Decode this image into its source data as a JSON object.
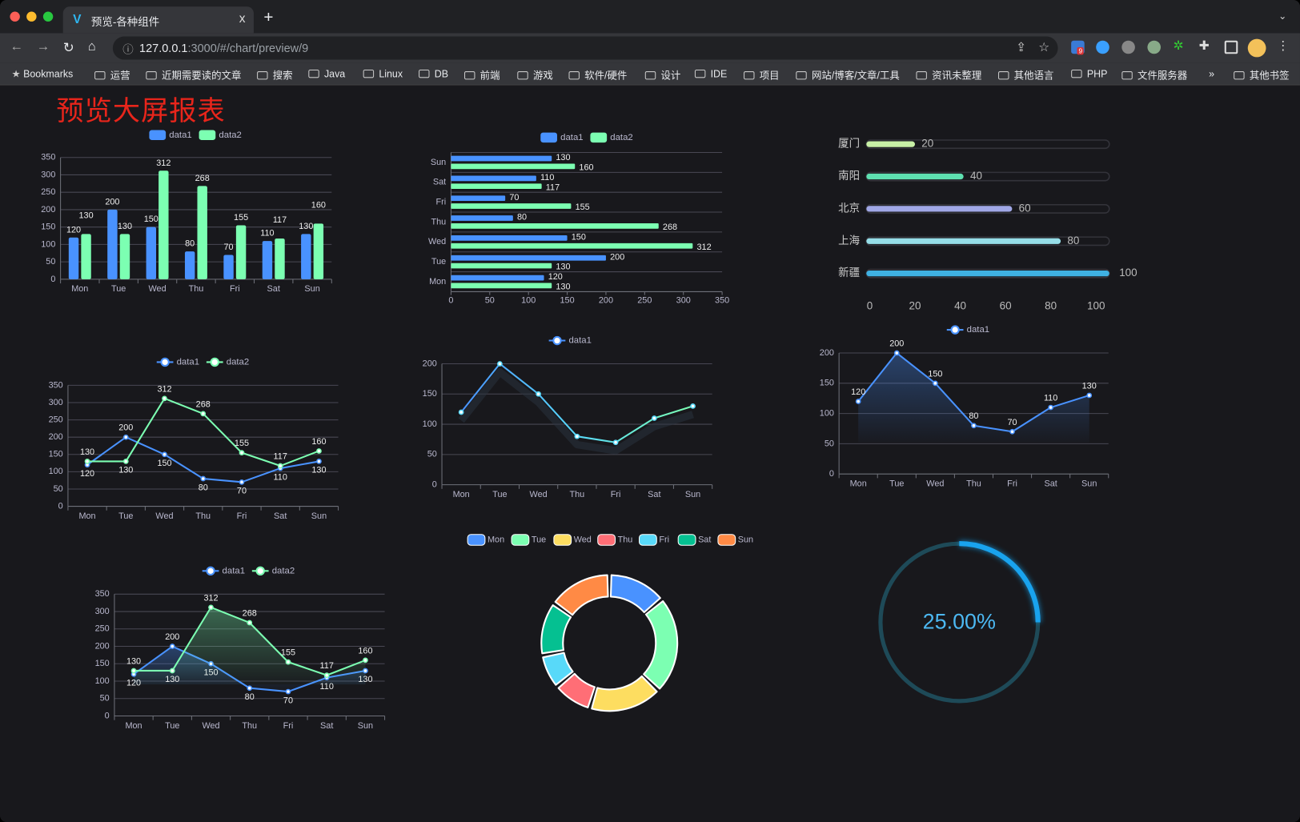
{
  "browser": {
    "tab_title": "预览-各种组件",
    "tab_close": "x",
    "new_tab": "+",
    "url_host": "127.0.0.1",
    "url_rest": ":3000/#/chart/preview/9",
    "extension_badge": "9",
    "bookmarks": [
      "Bookmarks",
      "运营",
      "近期需要读的文章",
      "搜索",
      "Java",
      "Linux",
      "DB",
      "前端",
      "游戏",
      "软件/硬件",
      "设计",
      "IDE",
      "项目",
      "网站/博客/文章/工具",
      "资讯未整理",
      "其他语言",
      "PHP",
      "文件服务器"
    ],
    "bookmarks_overflow": "»",
    "other_bookmarks": "其他书签"
  },
  "page": {
    "title": "预览大屏报表"
  },
  "colors": {
    "blue": "#4992ff",
    "green": "#7cffb2",
    "yellow": "#fddd60",
    "red": "#ff6e76",
    "cyan": "#58d9f9",
    "teal": "#05c091",
    "orange": "#ff8a45",
    "title": "#e8251b",
    "gauge": "#19a3ee"
  },
  "chart_data": [
    {
      "type": "bar",
      "categories": [
        "Mon",
        "Tue",
        "Wed",
        "Thu",
        "Fri",
        "Sat",
        "Sun"
      ],
      "ylim": [
        0,
        350
      ],
      "yticks": [
        0,
        50,
        100,
        150,
        200,
        250,
        300,
        350
      ],
      "legend": "top",
      "grid": true,
      "series": [
        {
          "name": "data1",
          "values": [
            120,
            200,
            150,
            80,
            70,
            110,
            130
          ]
        },
        {
          "name": "data2",
          "values": [
            130,
            130,
            312,
            268,
            155,
            117,
            160
          ]
        }
      ]
    },
    {
      "type": "bar",
      "orientation": "horizontal",
      "categories": [
        "Mon",
        "Tue",
        "Wed",
        "Thu",
        "Fri",
        "Sat",
        "Sun"
      ],
      "xlim": [
        0,
        350
      ],
      "xticks": [
        0,
        50,
        100,
        150,
        200,
        250,
        300,
        350
      ],
      "legend": "top",
      "grid": true,
      "series": [
        {
          "name": "data1",
          "values": [
            120,
            200,
            150,
            80,
            70,
            110,
            130
          ]
        },
        {
          "name": "data2",
          "values": [
            130,
            130,
            312,
            268,
            155,
            117,
            160
          ]
        }
      ]
    },
    {
      "type": "bar",
      "orientation": "horizontal",
      "style": "progress",
      "categories": [
        "厦门",
        "南阳",
        "北京",
        "上海",
        "新疆"
      ],
      "values": [
        20,
        40,
        60,
        80,
        100
      ],
      "xlim": [
        0,
        100
      ],
      "xticks": [
        0,
        20,
        40,
        60,
        80,
        100
      ],
      "colors": [
        "#c8f0a6",
        "#5ee0b0",
        "#a0a7e6",
        "#96dee8",
        "#3fb1e3"
      ]
    },
    {
      "type": "line",
      "categories": [
        "Mon",
        "Tue",
        "Wed",
        "Thu",
        "Fri",
        "Sat",
        "Sun"
      ],
      "ylim": [
        0,
        350
      ],
      "yticks": [
        0,
        50,
        100,
        150,
        200,
        250,
        300,
        350
      ],
      "legend": "top",
      "grid": true,
      "series": [
        {
          "name": "data1",
          "values": [
            120,
            200,
            150,
            80,
            70,
            110,
            130
          ]
        },
        {
          "name": "data2",
          "values": [
            130,
            130,
            312,
            268,
            155,
            117,
            160
          ]
        }
      ]
    },
    {
      "type": "line",
      "gradient_line": true,
      "categories": [
        "Mon",
        "Tue",
        "Wed",
        "Thu",
        "Fri",
        "Sat",
        "Sun"
      ],
      "ylim": [
        0,
        200
      ],
      "yticks": [
        0,
        50,
        100,
        150,
        200
      ],
      "legend": "top",
      "grid": true,
      "series": [
        {
          "name": "data1",
          "values": [
            120,
            200,
            150,
            80,
            70,
            110,
            130
          ]
        }
      ]
    },
    {
      "type": "area",
      "categories": [
        "Mon",
        "Tue",
        "Wed",
        "Thu",
        "Fri",
        "Sat",
        "Sun"
      ],
      "ylim": [
        0,
        200
      ],
      "yticks": [
        0,
        50,
        100,
        150,
        200
      ],
      "legend": "top",
      "grid": true,
      "series": [
        {
          "name": "data1",
          "values": [
            120,
            200,
            150,
            80,
            70,
            110,
            130
          ]
        }
      ]
    },
    {
      "type": "area",
      "categories": [
        "Mon",
        "Tue",
        "Wed",
        "Thu",
        "Fri",
        "Sat",
        "Sun"
      ],
      "ylim": [
        0,
        350
      ],
      "yticks": [
        0,
        50,
        100,
        150,
        200,
        250,
        300,
        350
      ],
      "legend": "top",
      "grid": true,
      "series": [
        {
          "name": "data1",
          "values": [
            120,
            200,
            150,
            80,
            70,
            110,
            130
          ]
        },
        {
          "name": "data2",
          "values": [
            130,
            130,
            312,
            268,
            155,
            117,
            160
          ]
        }
      ]
    },
    {
      "type": "pie",
      "donut": true,
      "legend": "top",
      "categories": [
        "Mon",
        "Tue",
        "Wed",
        "Thu",
        "Fri",
        "Sat",
        "Sun"
      ],
      "values": [
        120,
        200,
        150,
        80,
        70,
        110,
        130
      ]
    },
    {
      "type": "gauge",
      "value": 0.25,
      "label": "25.00%"
    }
  ]
}
